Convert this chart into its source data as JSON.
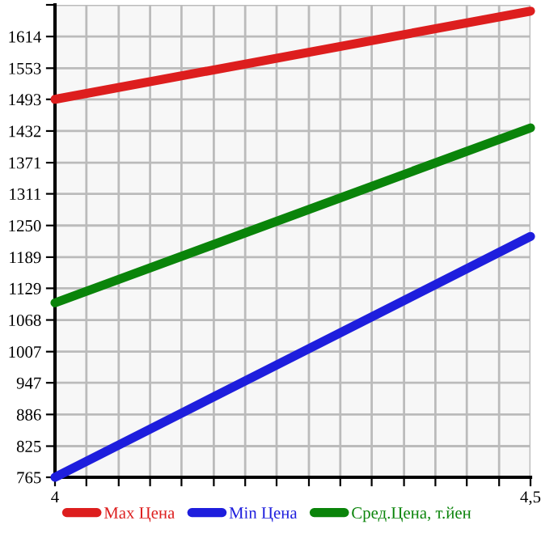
{
  "chart_data": {
    "type": "line",
    "x": [
      4,
      4.5
    ],
    "series": [
      {
        "name": "Max Цена",
        "color": "#dd1e1e",
        "values": [
          1493,
          1663
        ]
      },
      {
        "name": "Min Цена",
        "color": "#1e1edd",
        "values": [
          765,
          1229
        ]
      },
      {
        "name": "Сред.Цена, т.йен",
        "color": "#0a840a",
        "values": [
          1101,
          1438
        ]
      }
    ],
    "xlim": [
      4,
      4.5
    ],
    "xticks": [
      4,
      {
        "value": 4.033,
        "label": null
      },
      {
        "value": 4.067,
        "label": null
      },
      {
        "value": 4.1,
        "label": null
      },
      {
        "value": 4.133,
        "label": null
      },
      {
        "value": 4.167,
        "label": null
      },
      {
        "value": 4.2,
        "label": null
      },
      {
        "value": 4.233,
        "label": null
      },
      {
        "value": 4.267,
        "label": null
      },
      {
        "value": 4.3,
        "label": null
      },
      {
        "value": 4.333,
        "label": null
      },
      {
        "value": 4.367,
        "label": null
      },
      {
        "value": 4.4,
        "label": null
      },
      {
        "value": 4.433,
        "label": null
      },
      {
        "value": 4.467,
        "label": null
      },
      {
        "value": 4.5,
        "label": "4,5"
      }
    ],
    "ylim": [
      765,
      1675
    ],
    "yticks": [
      765,
      825,
      886,
      947,
      1007,
      1068,
      1129,
      1189,
      1250,
      1311,
      1371,
      1432,
      1493,
      1553,
      1614,
      {
        "value": 1675,
        "label": null
      }
    ],
    "grid": true,
    "legend": "bottom",
    "marker": "none",
    "line_style": "solid"
  }
}
